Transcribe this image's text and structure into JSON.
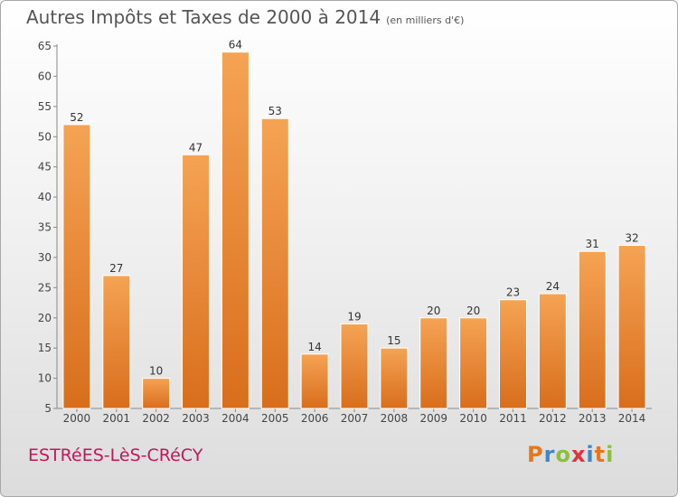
{
  "header": {
    "title": "Autres Impôts et Taxes de 2000 à 2014",
    "subtitle": "(en milliers d'€)"
  },
  "footer": {
    "commune": "ESTRéES-LèS-CRéCY",
    "logo": "Proxiti"
  },
  "colors": {
    "bar_light": "#f5a354",
    "bar_dark": "#d86e1c",
    "commune": "#c2185b",
    "logo_letters": [
      "#e8761a",
      "#3f86c8",
      "#8bbf3c",
      "#e2313b",
      "#3f86c8",
      "#e8761a",
      "#8bbf3c"
    ]
  },
  "chart_data": {
    "type": "bar",
    "title": "Autres Impôts et Taxes de 2000 à 2014",
    "subtitle": "(en milliers d'€)",
    "categories": [
      "2000",
      "2001",
      "2002",
      "2003",
      "2004",
      "2005",
      "2006",
      "2007",
      "2008",
      "2009",
      "2010",
      "2011",
      "2012",
      "2013",
      "2014"
    ],
    "values": [
      52,
      27,
      10,
      47,
      64,
      53,
      14,
      19,
      15,
      20,
      20,
      23,
      24,
      31,
      32
    ],
    "ylim": [
      5,
      65
    ],
    "yticks": [
      5,
      10,
      15,
      20,
      25,
      30,
      35,
      40,
      45,
      50,
      55,
      60,
      65
    ],
    "grid": false,
    "data_labels": true
  }
}
